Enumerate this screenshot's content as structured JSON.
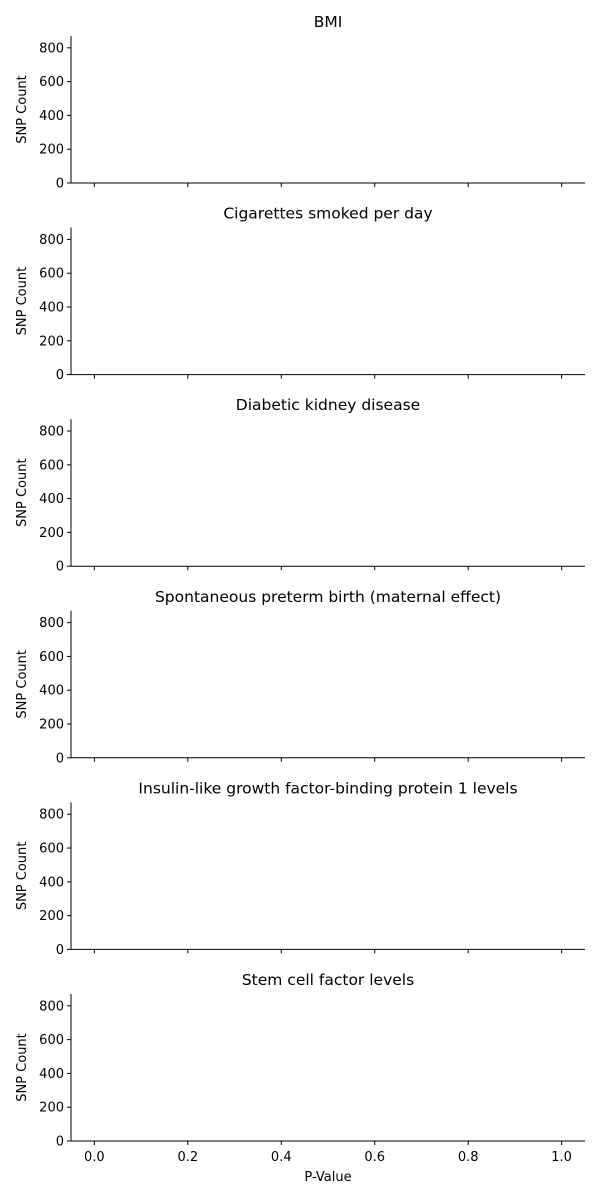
{
  "chart_data": {
    "type": "bar",
    "shared_x": {
      "label": "P-Value",
      "range": [
        -0.05,
        1.05
      ],
      "ticks": [
        0.0,
        0.2,
        0.4,
        0.6,
        0.8,
        1.0
      ],
      "tick_labels": [
        "0.0",
        "0.2",
        "0.4",
        "0.6",
        "0.8",
        "1.0"
      ]
    },
    "panels": [
      {
        "title": "BMI",
        "ylabel": "SNP Count",
        "ylim": [
          0,
          870
        ],
        "yticks": [
          0,
          200,
          400,
          600,
          800
        ],
        "ytick_labels": [
          "0",
          "200",
          "400",
          "600",
          "800"
        ],
        "values": []
      },
      {
        "title": "Cigarettes smoked per day",
        "ylabel": "SNP Count",
        "ylim": [
          0,
          870
        ],
        "yticks": [
          0,
          200,
          400,
          600,
          800
        ],
        "ytick_labels": [
          "0",
          "200",
          "400",
          "600",
          "800"
        ],
        "values": []
      },
      {
        "title": "Diabetic kidney disease",
        "ylabel": "SNP Count",
        "ylim": [
          0,
          870
        ],
        "yticks": [
          0,
          200,
          400,
          600,
          800
        ],
        "ytick_labels": [
          "0",
          "200",
          "400",
          "600",
          "800"
        ],
        "values": []
      },
      {
        "title": "Spontaneous preterm birth (maternal effect)",
        "ylabel": "SNP Count",
        "ylim": [
          0,
          870
        ],
        "yticks": [
          0,
          200,
          400,
          600,
          800
        ],
        "ytick_labels": [
          "0",
          "200",
          "400",
          "600",
          "800"
        ],
        "values": []
      },
      {
        "title": "Insulin-like growth factor-binding protein 1 levels",
        "ylabel": "SNP Count",
        "ylim": [
          0,
          870
        ],
        "yticks": [
          0,
          200,
          400,
          600,
          800
        ],
        "ytick_labels": [
          "0",
          "200",
          "400",
          "600",
          "800"
        ],
        "values": []
      },
      {
        "title": "Stem cell factor levels",
        "ylabel": "SNP Count",
        "ylim": [
          0,
          870
        ],
        "yticks": [
          0,
          200,
          400,
          600,
          800
        ],
        "ytick_labels": [
          "0",
          "200",
          "400",
          "600",
          "800"
        ],
        "values": []
      }
    ],
    "grid": false,
    "legend": "none"
  }
}
